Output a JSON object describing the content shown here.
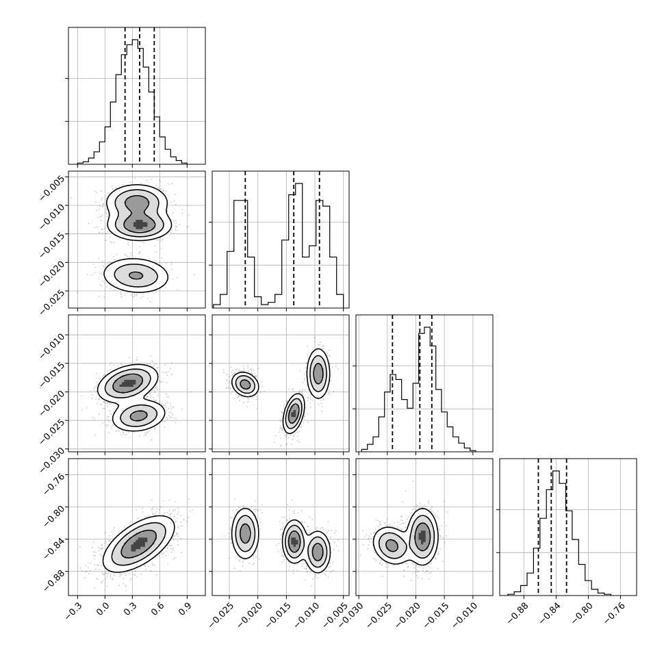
{
  "chart_data": {
    "type": "corner",
    "parameters": [
      {
        "range": [
          -0.4,
          1.1
        ],
        "ticks": [
          -0.3,
          0.0,
          0.3,
          0.6,
          0.9
        ],
        "tick_labels": [
          "−0.3",
          "0.0",
          "0.3",
          "0.6",
          "0.9"
        ],
        "histogram": {
          "bin_width": 0.06,
          "edges_start": -0.3,
          "counts": [
            0.01,
            0.02,
            0.05,
            0.1,
            0.18,
            0.3,
            0.5,
            0.72,
            0.88,
            0.96,
            1.0,
            0.93,
            0.78,
            0.58,
            0.38,
            0.22,
            0.12,
            0.06,
            0.03,
            0.01
          ],
          "quantiles": [
            0.22,
            0.38,
            0.54
          ]
        }
      },
      {
        "range": [
          -0.028,
          -0.004
        ],
        "ticks": [
          -0.025,
          -0.02,
          -0.015,
          -0.01,
          -0.005
        ],
        "tick_labels": [
          "−0.025",
          "−0.020",
          "−0.015",
          "−0.010",
          "−0.005"
        ],
        "histogram": {
          "bin_width": 0.0012,
          "edges_start": -0.0278,
          "counts": [
            0.03,
            0.12,
            0.5,
            0.95,
            0.95,
            0.45,
            0.1,
            0.03,
            0.05,
            0.12,
            0.6,
            1.0,
            1.1,
            0.45,
            0.55,
            0.95,
            0.9,
            0.45,
            0.12
          ],
          "quantiles": [
            -0.0222,
            -0.0137,
            -0.0092
          ]
        }
      },
      {
        "range": [
          -0.0305,
          -0.0065
        ],
        "ticks": [
          -0.03,
          -0.025,
          -0.02,
          -0.015,
          -0.01
        ],
        "tick_labels": [
          "−0.030",
          "−0.025",
          "−0.020",
          "−0.015",
          "−0.010"
        ],
        "histogram": {
          "bin_width": 0.001,
          "edges_start": -0.0295,
          "counts": [
            0.02,
            0.06,
            0.12,
            0.28,
            0.48,
            0.62,
            0.58,
            0.42,
            0.35,
            0.55,
            0.95,
            1.0,
            0.85,
            0.5,
            0.32,
            0.2,
            0.12,
            0.07,
            0.03,
            0.01
          ],
          "quantiles": [
            -0.0241,
            -0.0193,
            -0.0172
          ]
        }
      },
      {
        "range": [
          -0.91,
          -0.74
        ],
        "ticks": [
          -0.88,
          -0.84,
          -0.8,
          -0.76
        ],
        "tick_labels": [
          "−0.88",
          "−0.84",
          "−0.80",
          "−0.76"
        ],
        "histogram": {
          "bin_width": 0.008,
          "edges_start": -0.9,
          "counts": [
            0.01,
            0.03,
            0.08,
            0.18,
            0.38,
            0.62,
            0.85,
            1.0,
            0.9,
            0.68,
            0.45,
            0.25,
            0.12,
            0.05,
            0.02,
            0.01
          ],
          "quantiles": [
            -0.862,
            -0.846,
            -0.827
          ]
        }
      }
    ],
    "pairs": [
      {
        "row": 1,
        "col": 0,
        "modes": [
          {
            "center": [
              0.35,
              -0.0095
            ],
            "spread": [
              0.17,
              0.0016
            ],
            "rho": 0.0,
            "weight": 0.33
          },
          {
            "center": [
              0.38,
              -0.0135
            ],
            "spread": [
              0.17,
              0.0013
            ],
            "rho": 0.0,
            "weight": 0.4
          },
          {
            "center": [
              0.34,
              -0.0223
            ],
            "spread": [
              0.19,
              0.0016
            ],
            "rho": -0.1,
            "weight": 0.27
          }
        ]
      },
      {
        "row": 2,
        "col": 0,
        "modes": [
          {
            "center": [
              0.25,
              -0.0185
            ],
            "spread": [
              0.16,
              0.0016
            ],
            "rho": 0.35,
            "weight": 0.58
          },
          {
            "center": [
              0.37,
              -0.0242
            ],
            "spread": [
              0.15,
              0.0014
            ],
            "rho": 0.2,
            "weight": 0.42
          }
        ]
      },
      {
        "row": 2,
        "col": 1,
        "modes": [
          {
            "center": [
              -0.0222,
              -0.0187
            ],
            "spread": [
              0.0012,
              0.0011
            ],
            "rho": -0.2,
            "weight": 0.3
          },
          {
            "center": [
              -0.0137,
              -0.0238
            ],
            "spread": [
              0.0009,
              0.0017
            ],
            "rho": 0.4,
            "weight": 0.38
          },
          {
            "center": [
              -0.0094,
              -0.0168
            ],
            "spread": [
              0.001,
              0.0022
            ],
            "rho": 0.0,
            "weight": 0.32
          }
        ]
      },
      {
        "row": 3,
        "col": 0,
        "modes": [
          {
            "center": [
              0.37,
              -0.846
            ],
            "spread": [
              0.19,
              0.017
            ],
            "rho": 0.6,
            "weight": 1.0
          }
        ]
      },
      {
        "row": 3,
        "col": 1,
        "modes": [
          {
            "center": [
              -0.0222,
              -0.833
            ],
            "spread": [
              0.0012,
              0.016
            ],
            "rho": 0.0,
            "weight": 0.3
          },
          {
            "center": [
              -0.0136,
              -0.843
            ],
            "spread": [
              0.001,
              0.013
            ],
            "rho": 0.0,
            "weight": 0.38
          },
          {
            "center": [
              -0.0095,
              -0.856
            ],
            "spread": [
              0.0011,
              0.013
            ],
            "rho": 0.0,
            "weight": 0.32
          }
        ]
      },
      {
        "row": 3,
        "col": 2,
        "modes": [
          {
            "center": [
              -0.0242,
              -0.848
            ],
            "spread": [
              0.0017,
              0.012
            ],
            "rho": -0.2,
            "weight": 0.42
          },
          {
            "center": [
              -0.0188,
              -0.837
            ],
            "spread": [
              0.0013,
              0.017
            ],
            "rho": 0.0,
            "weight": 0.58
          }
        ]
      }
    ],
    "grid": true,
    "contour_levels": [
      0.12,
      0.3,
      0.6
    ],
    "xlabel": "",
    "ylabel": "",
    "title": ""
  }
}
